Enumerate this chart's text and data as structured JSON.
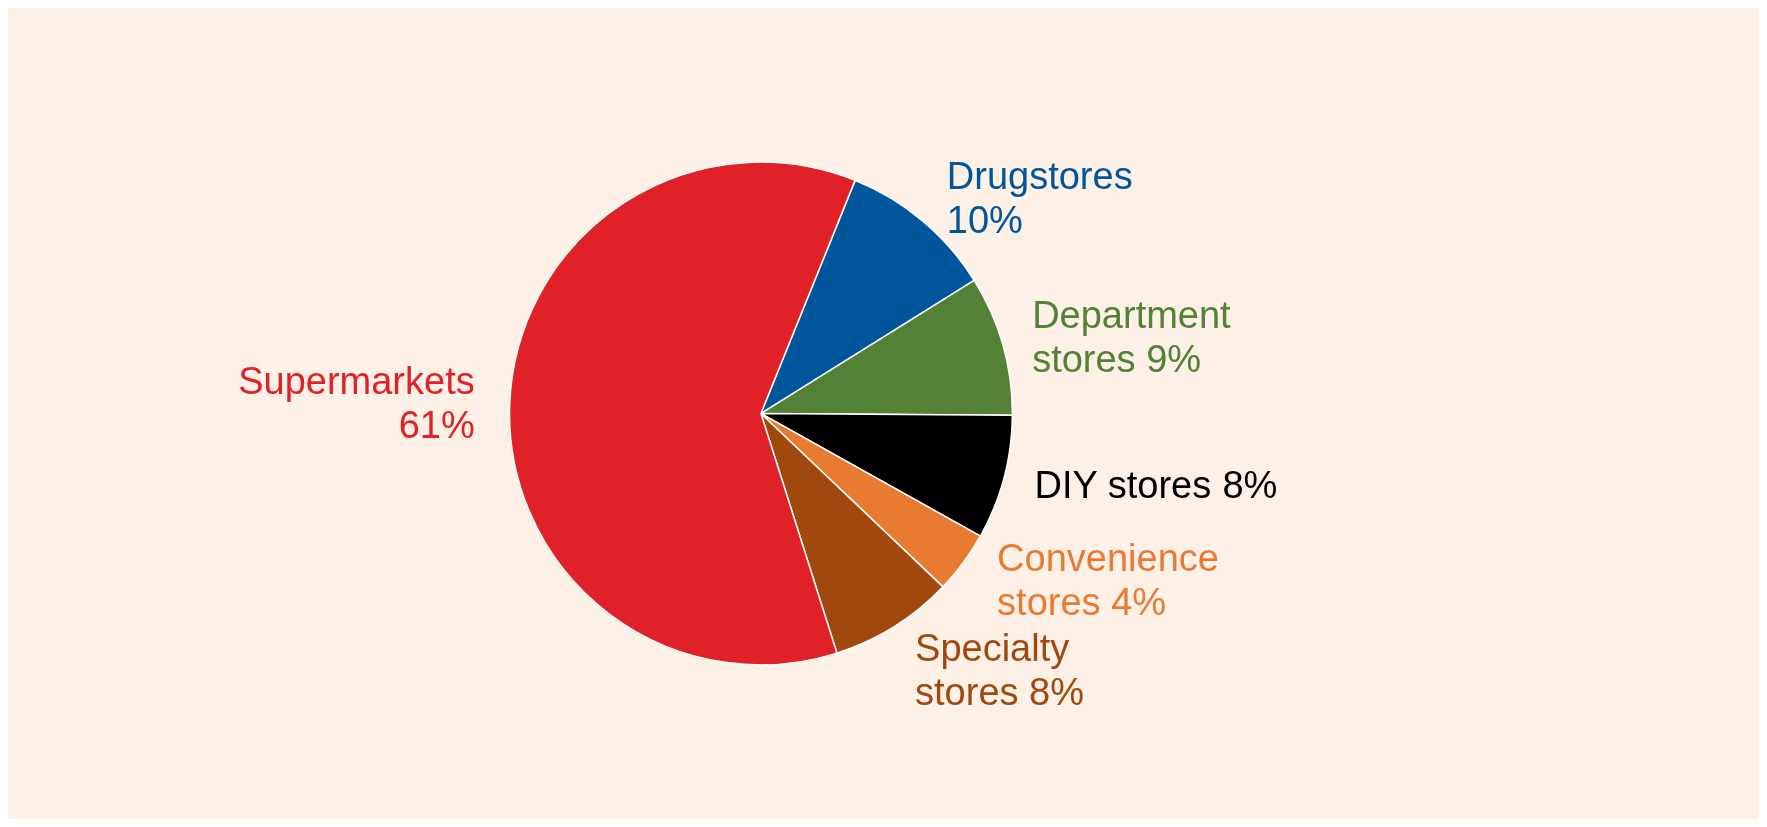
{
  "chart_data": {
    "type": "pie",
    "categories": [
      "Drugstores",
      "Department stores",
      "DIY stores",
      "Convenience stores",
      "Specialty stores",
      "Supermarkets"
    ],
    "values": [
      10,
      9,
      8,
      4,
      8,
      61
    ],
    "colors": [
      "#00569b",
      "#538135",
      "#000000",
      "#e97a32",
      "#a0480e",
      "#e02127"
    ],
    "value_labels": [
      "10%",
      "9%",
      "8%",
      "4%",
      "8%",
      "61%"
    ],
    "legend": false
  }
}
